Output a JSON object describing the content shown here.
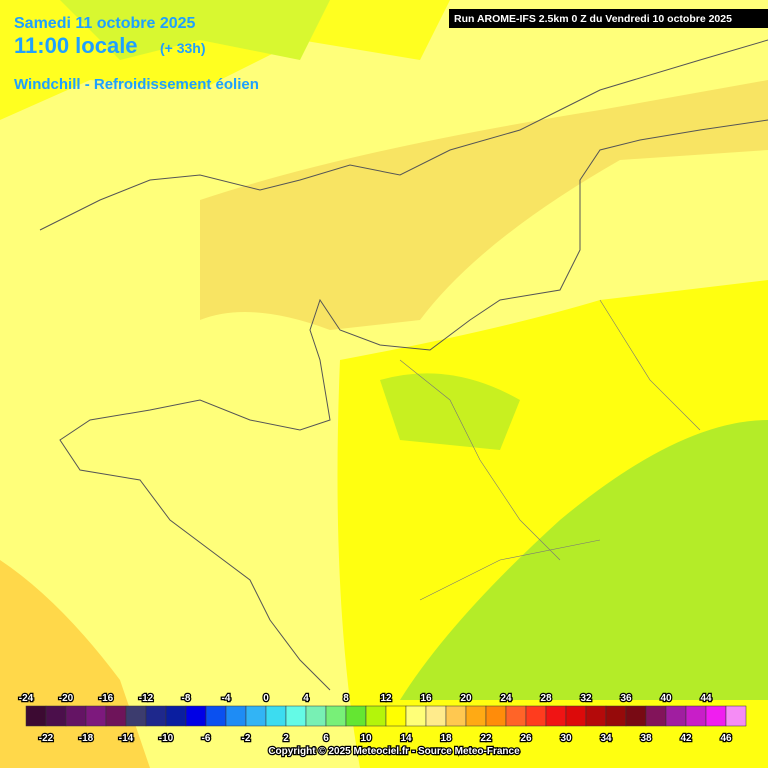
{
  "header": {
    "date": "Samedi 11 octobre 2025",
    "time": "11:00 locale",
    "offset": "(+ 33h)",
    "parameter": "Windchill - Refroidissement éolien",
    "run": "Run AROME-IFS 2.5km 0 Z du Vendredi 10 octobre 2025"
  },
  "legend": {
    "ticks": [
      -24,
      -22,
      -20,
      -18,
      -16,
      -14,
      -12,
      -10,
      -8,
      -6,
      -4,
      -2,
      0,
      2,
      4,
      6,
      8,
      10,
      12,
      14,
      16,
      18,
      20,
      22,
      24,
      26,
      28,
      30,
      32,
      34,
      36,
      38,
      40,
      42,
      44,
      46
    ],
    "colors": [
      "#3c0a32",
      "#4b0f4b",
      "#641464",
      "#7d197d",
      "#6e145a",
      "#3c3c6e",
      "#1e288c",
      "#0a1ea0",
      "#0000e6",
      "#0a50f0",
      "#1e8cf5",
      "#32b4f5",
      "#3cdcf0",
      "#64fae6",
      "#78f0b4",
      "#78f078",
      "#64e632",
      "#b4f50a",
      "#ffff00",
      "#ffff78",
      "#ffeb8c",
      "#ffc850",
      "#ffaa14",
      "#ff8c0a",
      "#ff6428",
      "#ff3c1e",
      "#f01414",
      "#dc0a0a",
      "#b40a0a",
      "#960a0a",
      "#780a14",
      "#82145a",
      "#a01ea0",
      "#c81ec8",
      "#f01ef0",
      "#f58cf5"
    ]
  },
  "footer": {
    "copyright": "Copyright © 2025 Meteociel.fr - Source Meteo-France"
  }
}
